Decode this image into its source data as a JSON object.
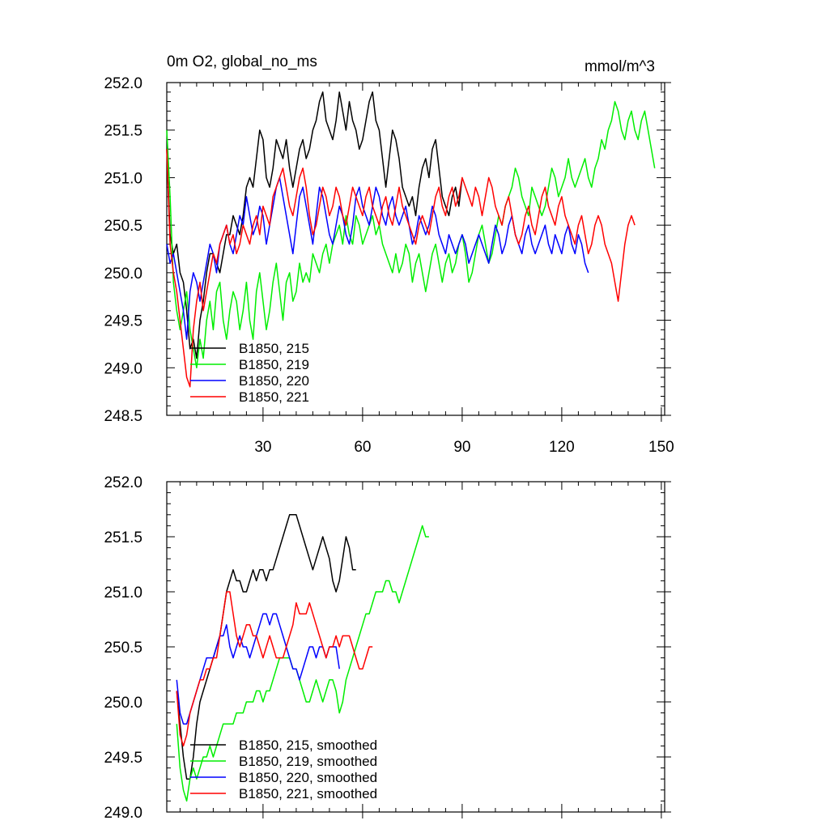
{
  "chart_data": [
    {
      "type": "line",
      "title": "0m O2, global_no_ms",
      "units": "mmol/m^3",
      "xlim": [
        1,
        151
      ],
      "ylim": [
        248.5,
        252.0
      ],
      "xticks": [
        30,
        60,
        90,
        120,
        150
      ],
      "yticks": [
        "248.5",
        "249.0",
        "249.5",
        "250.0",
        "250.5",
        "251.0",
        "251.5",
        "252.0"
      ],
      "legend_position": "bottom-left",
      "series": [
        {
          "name": "B1850, 215",
          "color": "#000000",
          "x_start": 1,
          "values": [
            251.3,
            250.4,
            250.2,
            250.3,
            250.0,
            249.9,
            249.6,
            249.2,
            249.3,
            249.1,
            249.5,
            249.7,
            250.0,
            250.2,
            250.2,
            250.1,
            250.0,
            250.2,
            250.4,
            250.4,
            250.6,
            250.5,
            250.4,
            250.6,
            250.9,
            251.0,
            250.9,
            251.2,
            251.5,
            251.4,
            251.0,
            250.9,
            251.1,
            251.4,
            251.3,
            251.2,
            251.4,
            251.1,
            250.9,
            251.1,
            251.3,
            251.4,
            251.2,
            251.3,
            251.5,
            251.6,
            251.8,
            251.9,
            251.6,
            251.5,
            251.4,
            251.6,
            251.9,
            251.7,
            251.5,
            251.8,
            251.6,
            251.5,
            251.3,
            251.4,
            251.6,
            251.8,
            251.9,
            251.6,
            251.5,
            251.2,
            250.9,
            251.2,
            251.5,
            251.4,
            251.2,
            250.9,
            250.8,
            250.7,
            250.8,
            250.6,
            250.9,
            251.1,
            251.2,
            251.0,
            251.3,
            251.4,
            251.1,
            250.8,
            250.7,
            250.6,
            250.8,
            250.9,
            250.7,
            251.0
          ]
        },
        {
          "name": "B1850, 219",
          "color": "#00ee00",
          "x_start": 1,
          "values": [
            251.5,
            250.8,
            249.9,
            249.6,
            249.4,
            249.6,
            249.8,
            249.4,
            249.2,
            249.0,
            249.3,
            249.1,
            249.5,
            249.7,
            249.4,
            249.8,
            249.9,
            249.5,
            249.3,
            249.6,
            249.8,
            249.7,
            249.4,
            249.6,
            249.9,
            249.5,
            249.3,
            249.8,
            250.0,
            249.7,
            249.4,
            249.6,
            249.9,
            250.1,
            249.8,
            249.5,
            249.9,
            250.0,
            249.7,
            249.8,
            250.1,
            249.9,
            250.0,
            249.9,
            250.2,
            250.1,
            250.0,
            250.2,
            250.3,
            250.1,
            250.3,
            250.4,
            250.5,
            250.3,
            250.6,
            250.4,
            250.3,
            250.6,
            250.5,
            250.3,
            250.4,
            250.5,
            250.6,
            250.4,
            250.5,
            250.3,
            250.2,
            250.1,
            250.0,
            250.2,
            250.0,
            250.1,
            250.3,
            250.2,
            249.9,
            250.1,
            250.2,
            250.0,
            249.8,
            250.0,
            250.2,
            250.3,
            250.1,
            249.9,
            250.1,
            250.2,
            250.0,
            250.1,
            250.3,
            250.4,
            250.2,
            249.9,
            250.0,
            250.2,
            250.4,
            250.5,
            250.3,
            250.1,
            250.2,
            250.4,
            250.6,
            250.5,
            250.7,
            250.8,
            250.9,
            251.1,
            251.0,
            250.8,
            250.7,
            250.6,
            250.9,
            250.8,
            250.7,
            250.6,
            250.7,
            250.9,
            251.1,
            251.0,
            250.8,
            250.9,
            251.0,
            251.2,
            251.0,
            250.9,
            251.0,
            251.1,
            251.2,
            251.0,
            250.9,
            251.1,
            251.2,
            251.4,
            251.3,
            251.5,
            251.6,
            251.8,
            251.7,
            251.5,
            251.4,
            251.6,
            251.7,
            251.5,
            251.4,
            251.6,
            251.7,
            251.5,
            251.3,
            251.1
          ]
        },
        {
          "name": "B1850, 220",
          "color": "#0000ff",
          "x_start": 1,
          "values": [
            250.3,
            250.1,
            250.2,
            250.0,
            249.8,
            249.6,
            249.3,
            249.8,
            250.0,
            249.9,
            249.7,
            249.9,
            250.1,
            250.3,
            250.2,
            250.0,
            250.3,
            250.4,
            250.5,
            250.3,
            250.2,
            250.4,
            250.6,
            250.5,
            250.8,
            250.6,
            250.4,
            250.5,
            250.7,
            250.6,
            250.3,
            250.5,
            250.7,
            250.9,
            251.0,
            250.8,
            250.6,
            250.4,
            250.2,
            250.5,
            250.8,
            250.9,
            250.7,
            250.5,
            250.3,
            250.6,
            250.9,
            250.8,
            250.6,
            250.4,
            250.3,
            250.5,
            250.7,
            250.6,
            250.4,
            250.3,
            250.5,
            250.8,
            250.9,
            250.7,
            250.6,
            250.5,
            250.7,
            250.9,
            250.8,
            250.6,
            250.5,
            250.7,
            250.8,
            250.6,
            250.5,
            250.6,
            250.7,
            250.5,
            250.3,
            250.4,
            250.6,
            250.5,
            250.4,
            250.5,
            250.7,
            250.6,
            250.4,
            250.3,
            250.2,
            250.4,
            250.3,
            250.2,
            250.3,
            250.4,
            250.3,
            250.1,
            250.2,
            250.3,
            250.4,
            250.3,
            250.2,
            250.1,
            250.3,
            250.5,
            250.4,
            250.2,
            250.3,
            250.5,
            250.6,
            250.4,
            250.3,
            250.2,
            250.4,
            250.5,
            250.3,
            250.2,
            250.3,
            250.4,
            250.5,
            250.3,
            250.2,
            250.4,
            250.3,
            250.2,
            250.4,
            250.5,
            250.3,
            250.2,
            250.4,
            250.3,
            250.1,
            250.0
          ]
        },
        {
          "name": "B1850, 221",
          "color": "#ff0000",
          "x_start": 1,
          "values": [
            251.3,
            250.3,
            250.0,
            249.8,
            249.5,
            249.2,
            248.9,
            248.8,
            249.4,
            249.7,
            249.9,
            249.6,
            249.8,
            250.0,
            250.2,
            250.1,
            250.3,
            250.4,
            250.5,
            250.3,
            250.4,
            250.2,
            250.3,
            250.5,
            250.4,
            250.3,
            250.5,
            250.6,
            250.4,
            250.7,
            250.6,
            250.5,
            250.8,
            250.9,
            251.0,
            251.1,
            250.9,
            250.7,
            250.6,
            250.8,
            251.0,
            251.1,
            250.9,
            250.6,
            250.4,
            250.5,
            250.7,
            250.9,
            250.8,
            250.6,
            250.7,
            250.9,
            250.8,
            250.6,
            250.5,
            250.7,
            250.9,
            250.8,
            250.7,
            250.6,
            250.8,
            250.9,
            250.7,
            250.6,
            250.5,
            250.7,
            250.8,
            250.6,
            250.5,
            250.7,
            250.9,
            250.7,
            250.6,
            250.5,
            250.4,
            250.3,
            250.5,
            250.6,
            250.5,
            250.4,
            250.6,
            250.8,
            250.9,
            250.7,
            250.6,
            250.8,
            250.9,
            250.7,
            250.8,
            251.0,
            250.9,
            250.8,
            250.7,
            250.9,
            250.8,
            250.6,
            250.8,
            251.0,
            250.9,
            250.7,
            250.6,
            250.5,
            250.7,
            250.8,
            250.6,
            250.4,
            250.3,
            250.4,
            250.6,
            250.7,
            250.5,
            250.4,
            250.6,
            250.8,
            250.9,
            250.7,
            250.6,
            250.5,
            250.7,
            250.8,
            250.6,
            250.5,
            250.4,
            250.3,
            250.5,
            250.6,
            250.4,
            250.2,
            250.3,
            250.5,
            250.6,
            250.5,
            250.3,
            250.2,
            250.1,
            249.9,
            249.7,
            250.0,
            250.3,
            250.5,
            250.6,
            250.5
          ]
        }
      ]
    },
    {
      "type": "line",
      "title": "",
      "units": "",
      "xlim": [
        1,
        151
      ],
      "ylim": [
        249.0,
        252.0
      ],
      "xticks": [
        30,
        60,
        90,
        120,
        150
      ],
      "show_xtick_labels": false,
      "yticks": [
        "249.0",
        "249.5",
        "250.0",
        "250.5",
        "251.0",
        "251.5",
        "252.0"
      ],
      "legend_position": "bottom-left",
      "series": [
        {
          "name": "B1850, 215, smoothed",
          "color": "#000000",
          "x_start": 4,
          "values": [
            250.1,
            249.8,
            249.5,
            249.3,
            249.3,
            249.5,
            249.8,
            250.0,
            250.1,
            250.2,
            250.3,
            250.4,
            250.5,
            250.6,
            250.8,
            251.0,
            251.1,
            251.2,
            251.1,
            251.1,
            251.0,
            251.0,
            251.1,
            251.2,
            251.1,
            251.2,
            251.2,
            251.1,
            251.2,
            251.2,
            251.3,
            251.4,
            251.5,
            251.6,
            251.7,
            251.7,
            251.7,
            251.6,
            251.5,
            251.4,
            251.3,
            251.2,
            251.3,
            251.4,
            251.5,
            251.4,
            251.3,
            251.1,
            251.0,
            251.1,
            251.3,
            251.5,
            251.4,
            251.2,
            251.2
          ]
        },
        {
          "name": "B1850, 219, smoothed",
          "color": "#00ee00",
          "x_start": 4,
          "values": [
            249.8,
            249.4,
            249.2,
            249.1,
            249.3,
            249.4,
            249.3,
            249.4,
            249.5,
            249.5,
            249.6,
            249.5,
            249.6,
            249.7,
            249.8,
            249.8,
            249.8,
            249.8,
            249.9,
            249.9,
            249.9,
            250.0,
            250.0,
            250.0,
            250.1,
            250.1,
            250.0,
            250.1,
            250.1,
            250.2,
            250.3,
            250.4,
            250.4,
            250.4,
            250.4,
            250.3,
            250.3,
            250.2,
            250.1,
            250.0,
            250.0,
            250.1,
            250.2,
            250.1,
            250.0,
            250.1,
            250.2,
            250.2,
            250.1,
            249.9,
            250.0,
            250.2,
            250.3,
            250.4,
            250.5,
            250.6,
            250.7,
            250.8,
            250.8,
            250.9,
            251.0,
            251.0,
            251.0,
            251.1,
            251.1,
            251.0,
            251.0,
            250.9,
            251.0,
            251.1,
            251.2,
            251.3,
            251.4,
            251.5,
            251.6,
            251.5,
            251.5
          ]
        },
        {
          "name": "B1850, 220, smoothed",
          "color": "#0000ff",
          "x_start": 4,
          "values": [
            250.2,
            249.9,
            249.8,
            249.8,
            249.9,
            250.0,
            250.1,
            250.2,
            250.3,
            250.4,
            250.4,
            250.4,
            250.5,
            250.6,
            250.6,
            250.7,
            250.5,
            250.4,
            250.5,
            250.6,
            250.5,
            250.5,
            250.4,
            250.5,
            250.6,
            250.7,
            250.8,
            250.8,
            250.7,
            250.8,
            250.8,
            250.7,
            250.6,
            250.5,
            250.4,
            250.3,
            250.3,
            250.2,
            250.3,
            250.4,
            250.5,
            250.5,
            250.4,
            250.5,
            250.5,
            250.4,
            250.5,
            250.5,
            250.5,
            250.3
          ]
        },
        {
          "name": "B1850, 221, smoothed",
          "color": "#ff0000",
          "x_start": 4,
          "values": [
            250.1,
            249.7,
            249.6,
            249.7,
            249.9,
            250.0,
            250.1,
            250.2,
            250.2,
            250.3,
            250.3,
            250.4,
            250.4,
            250.6,
            250.8,
            251.0,
            251.0,
            250.8,
            250.6,
            250.5,
            250.6,
            250.7,
            250.7,
            250.6,
            250.6,
            250.5,
            250.4,
            250.5,
            250.6,
            250.5,
            250.4,
            250.4,
            250.4,
            250.5,
            250.6,
            250.7,
            250.9,
            250.8,
            250.8,
            250.8,
            250.9,
            250.8,
            250.7,
            250.6,
            250.5,
            250.4,
            250.5,
            250.5,
            250.6,
            250.5,
            250.6,
            250.6,
            250.6,
            250.5,
            250.4,
            250.3,
            250.3,
            250.4,
            250.5,
            250.5
          ]
        }
      ]
    }
  ]
}
